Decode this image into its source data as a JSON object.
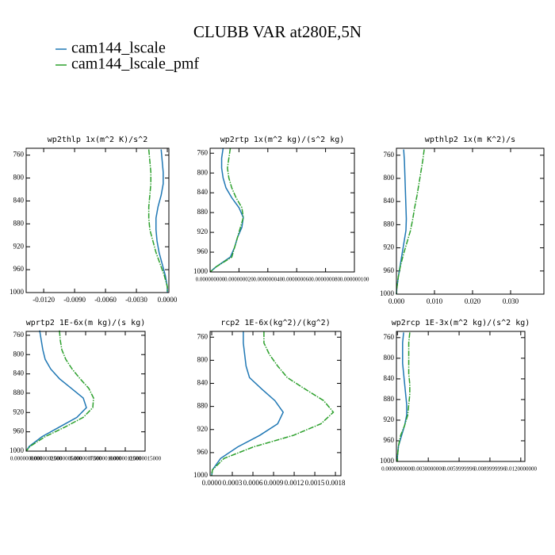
{
  "title": "CLUBB VAR at280E,5N",
  "legend": [
    {
      "name": "cam144_lscale",
      "color": "#1f77b4"
    },
    {
      "name": "cam144_lscale_pmf",
      "color": "#2ca02c"
    }
  ],
  "chart_data": [
    {
      "type": "line",
      "title": "wp2thlp  1x(m^2 K)/s^2",
      "y": [
        750,
        770,
        790,
        810,
        830,
        850,
        870,
        890,
        910,
        930,
        950,
        970,
        990,
        1000
      ],
      "series": [
        {
          "color": "#1f77b4",
          "values": [
            -0.0006,
            -0.0005,
            -0.0004,
            -0.0004,
            -0.0006,
            -0.0009,
            -0.0011,
            -0.0011,
            -0.001,
            -0.0008,
            -0.0005,
            -0.0002,
            0.0,
            0.0
          ]
        },
        {
          "color": "#2ca02c",
          "values": [
            -0.0018,
            -0.0017,
            -0.0016,
            -0.0016,
            -0.0017,
            -0.0018,
            -0.0018,
            -0.0017,
            -0.0014,
            -0.0011,
            -0.0007,
            -0.0003,
            0.0,
            0.0
          ]
        }
      ],
      "xlim": [
        -0.0137,
        0.00015
      ],
      "xticks": [
        {
          "value": -0.012,
          "label": "-0.0120"
        },
        {
          "value": -0.009,
          "label": "-0.0090"
        },
        {
          "value": -0.006,
          "label": "-0.0060"
        },
        {
          "value": -0.003,
          "label": "-0.0030"
        },
        {
          "value": 0,
          "label": "0.0000"
        }
      ],
      "ylim": [
        1000,
        748
      ],
      "yticks": [
        760,
        800,
        840,
        880,
        920,
        960,
        1000
      ]
    },
    {
      "type": "line",
      "title": "wp2rtp  1x(m^2 kg)/(s^2 kg)",
      "y": [
        750,
        770,
        790,
        810,
        830,
        850,
        870,
        890,
        910,
        930,
        950,
        970,
        990,
        1000
      ],
      "series": [
        {
          "color": "#1f77b4",
          "values": [
            9e-09,
            8e-09,
            8e-09,
            9e-09,
            1.1e-08,
            1.5e-08,
            2e-08,
            2.3e-08,
            2.2e-08,
            1.9e-08,
            1.7e-08,
            1.4e-08,
            4e-09,
            0
          ]
        },
        {
          "color": "#2ca02c",
          "values": [
            1.4e-08,
            1.3e-08,
            1.2e-08,
            1.3e-08,
            1.5e-08,
            1.8e-08,
            2.2e-08,
            2.3e-08,
            2.1e-08,
            1.9e-08,
            1.7e-08,
            1.5e-08,
            4e-09,
            0
          ]
        }
      ],
      "xlim": [
        0,
        1e-07
      ],
      "xticks": [
        {
          "value": 0,
          "label": "0.000000000"
        },
        {
          "value": 2e-08,
          "label": "0.000000020"
        },
        {
          "value": 4e-08,
          "label": "0.000000040"
        },
        {
          "value": 6e-08,
          "label": "0.000000060"
        },
        {
          "value": 8e-08,
          "label": "0.000000080"
        },
        {
          "value": 1e-07,
          "label": "0.000000100"
        }
      ],
      "ylim": [
        1000,
        750
      ],
      "yticks": [
        760,
        800,
        840,
        880,
        920,
        960,
        1000
      ]
    },
    {
      "type": "line",
      "title": "wpthlp2  1x(m K^2)/s",
      "y": [
        750,
        770,
        790,
        810,
        830,
        850,
        870,
        890,
        910,
        930,
        950,
        970,
        990,
        1000
      ],
      "series": [
        {
          "color": "#1f77b4",
          "values": [
            0.0019,
            0.0021,
            0.0022,
            0.0023,
            0.0024,
            0.0025,
            0.0026,
            0.0025,
            0.002,
            0.0015,
            0.001,
            0.0005,
            0.0001,
            0.0
          ]
        },
        {
          "color": "#2ca02c",
          "values": [
            0.0073,
            0.0069,
            0.0064,
            0.0059,
            0.0054,
            0.0048,
            0.0043,
            0.0037,
            0.0028,
            0.0019,
            0.0011,
            0.0005,
            0.0001,
            0.0
          ]
        }
      ],
      "xlim": [
        0,
        0.03875
      ],
      "xticks": [
        {
          "value": 0,
          "label": "0.000"
        },
        {
          "value": 0.01,
          "label": "0.010"
        },
        {
          "value": 0.02,
          "label": "0.020"
        },
        {
          "value": 0.03,
          "label": "0.030"
        }
      ],
      "ylim": [
        1000,
        748
      ],
      "yticks": [
        760,
        800,
        840,
        880,
        920,
        960,
        1000
      ]
    },
    {
      "type": "line",
      "title": "wprtp2  1E-6x(m kg)/(s kg)",
      "y": [
        750,
        770,
        790,
        810,
        830,
        850,
        870,
        890,
        910,
        930,
        950,
        970,
        990,
        1000
      ],
      "series": [
        {
          "color": "#1f77b4",
          "values": [
            1.7e-07,
            1.9e-07,
            2.1e-07,
            2.4e-07,
            3.1e-07,
            4.2e-07,
            5.7e-07,
            7.2e-07,
            7.6e-07,
            6.4e-07,
            4.2e-07,
            2e-07,
            4e-08,
            0
          ]
        },
        {
          "color": "#2ca02c",
          "values": [
            4.2e-07,
            4.3e-07,
            4.5e-07,
            5e-07,
            5.8e-07,
            6.8e-07,
            7.9e-07,
            8.5e-07,
            8.4e-07,
            7.2e-07,
            4.9e-07,
            2.4e-07,
            5e-08,
            0
          ]
        }
      ],
      "xlim": [
        0,
        1.5e-06
      ],
      "xticks": [
        {
          "value": 0,
          "label": "0.0000000000"
        },
        {
          "value": 2.5e-07,
          "label": "0.0000002500"
        },
        {
          "value": 5e-07,
          "label": "0.0000005000"
        },
        {
          "value": 7.5e-07,
          "label": "0.0000007500"
        },
        {
          "value": 1e-06,
          "label": "0.0000010000"
        },
        {
          "value": 1.25e-06,
          "label": "0.0000012500"
        },
        {
          "value": 1.5e-06,
          "label": "0.0000015000"
        }
      ],
      "ylim": [
        1000,
        752
      ],
      "yticks": [
        760,
        800,
        840,
        880,
        920,
        960,
        1000
      ]
    },
    {
      "type": "line",
      "title": "rcp2  1E-6x(kg^2)/(kg^2)",
      "y": [
        750,
        770,
        790,
        810,
        830,
        850,
        870,
        890,
        910,
        930,
        950,
        970,
        990,
        1000
      ],
      "series": [
        {
          "color": "#1f77b4",
          "values": [
            0.00046,
            0.00046,
            0.00048,
            0.0005,
            0.00055,
            0.00073,
            0.00092,
            0.00104,
            0.00096,
            0.0007,
            0.00038,
            0.00013,
            1e-05,
            0
          ]
        },
        {
          "color": "#2ca02c",
          "values": [
            0.00076,
            0.00076,
            0.00084,
            0.00096,
            0.0011,
            0.00136,
            0.00163,
            0.00177,
            0.00159,
            0.00119,
            0.00061,
            0.00018,
            1e-05,
            0
          ]
        }
      ],
      "xlim": [
        -2.3e-05,
        0.00188
      ],
      "xticks": [
        {
          "value": 0,
          "label": "0.0000"
        },
        {
          "value": 0.0003,
          "label": "0.0003"
        },
        {
          "value": 0.0006,
          "label": "0.0006"
        },
        {
          "value": 0.0009,
          "label": "0.0009"
        },
        {
          "value": 0.0012,
          "label": "0.0012"
        },
        {
          "value": 0.0015,
          "label": "0.0015"
        },
        {
          "value": 0.0018,
          "label": "0.0018"
        }
      ],
      "ylim": [
        1000,
        750
      ],
      "yticks": [
        760,
        800,
        840,
        880,
        920,
        960,
        1000
      ]
    },
    {
      "type": "line",
      "title": "wp2rcp  1E-3x(m^2 kg)/(s^2 kg)",
      "y": [
        750,
        770,
        790,
        810,
        830,
        850,
        870,
        890,
        910,
        930,
        950,
        970,
        990,
        1000
      ],
      "series": [
        {
          "color": "#1f77b4",
          "values": [
            0.0006,
            0.0005,
            0.0005,
            0.0005,
            0.0006,
            0.0007,
            0.0008,
            0.0009,
            0.0009,
            0.0007,
            0.0004,
            0.0001,
            0.0,
            0.0
          ]
        },
        {
          "color": "#2ca02c",
          "values": [
            0.0012,
            0.0011,
            0.0011,
            0.0011,
            0.0011,
            0.0012,
            0.0012,
            0.0011,
            0.001,
            0.0007,
            0.0003,
            0.0001,
            0.0,
            0.0
          ]
        }
      ],
      "xlim": [
        -0.0001,
        0.0124
      ],
      "xticks": [
        {
          "value": 0,
          "label": "0.0000000000"
        },
        {
          "value": 0.003,
          "label": "0.0030000000"
        },
        {
          "value": 0.006,
          "label": "0.0059999996"
        },
        {
          "value": 0.009,
          "label": "0.0089999996"
        },
        {
          "value": 0.012,
          "label": "0.0120000000"
        }
      ],
      "ylim": [
        1000,
        748
      ],
      "yticks": [
        760,
        800,
        840,
        880,
        920,
        960,
        1000
      ]
    }
  ]
}
